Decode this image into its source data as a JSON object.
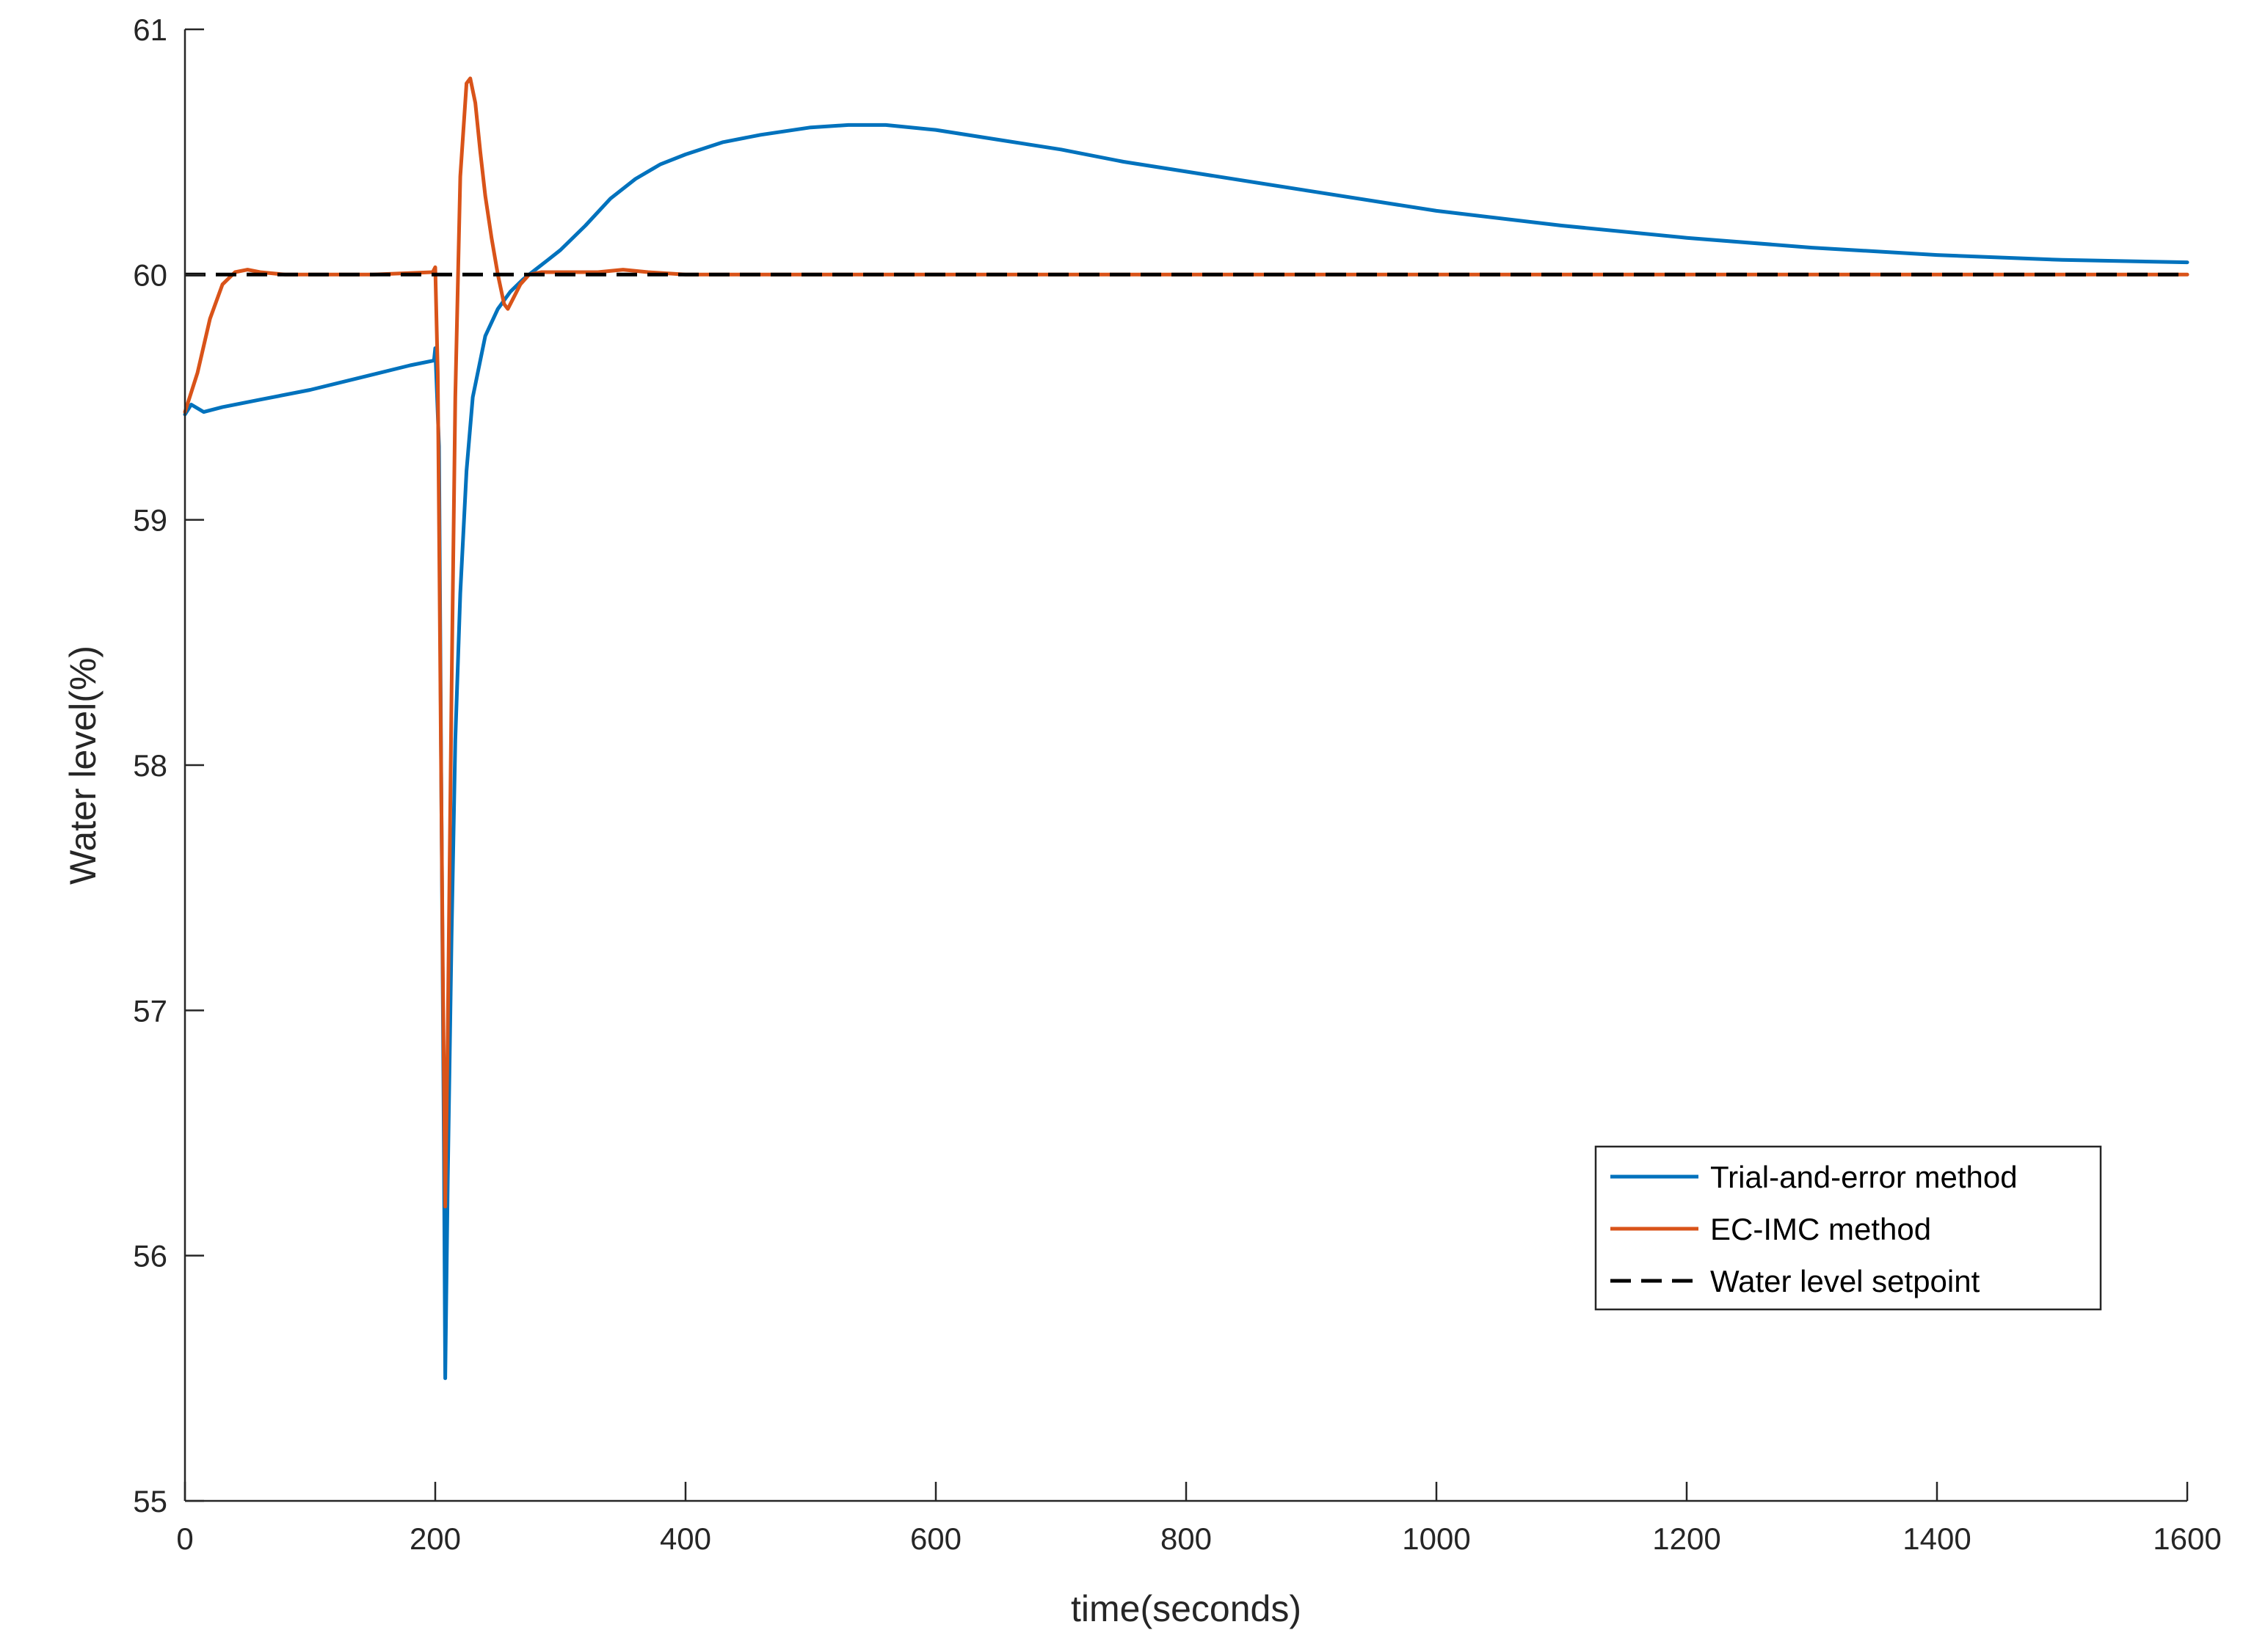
{
  "chart_data": {
    "type": "line",
    "title": "",
    "xlabel": "time(seconds)",
    "ylabel": "Water level(%)",
    "xlim": [
      0,
      1600
    ],
    "ylim": [
      55,
      61
    ],
    "xticks": [
      0,
      200,
      400,
      600,
      800,
      1000,
      1200,
      1400,
      1600
    ],
    "yticks": [
      55,
      56,
      57,
      58,
      59,
      60,
      61
    ],
    "xtick_labels": [
      "0",
      "200",
      "400",
      "600",
      "800",
      "1000",
      "1200",
      "1400",
      "1600"
    ],
    "ytick_labels": [
      "55",
      "56",
      "57",
      "58",
      "59",
      "60",
      "61"
    ],
    "grid": false,
    "legend_position": "bottom-right",
    "series": [
      {
        "name": "Trial-and-error method",
        "color": "#0072BD",
        "style": "solid",
        "x": [
          0,
          5,
          15,
          30,
          60,
          100,
          140,
          180,
          199,
          200,
          203,
          205,
          207,
          208,
          210,
          213,
          216,
          220,
          225,
          230,
          240,
          250,
          260,
          270,
          280,
          290,
          300,
          320,
          340,
          360,
          380,
          400,
          430,
          460,
          500,
          530,
          560,
          600,
          650,
          700,
          750,
          800,
          900,
          1000,
          1100,
          1200,
          1300,
          1400,
          1500,
          1600
        ],
        "y": [
          59.43,
          59.47,
          59.44,
          59.46,
          59.49,
          59.53,
          59.58,
          59.63,
          59.65,
          59.7,
          59.3,
          57.8,
          56.4,
          55.5,
          56.3,
          57.3,
          58.1,
          58.7,
          59.2,
          59.5,
          59.75,
          59.86,
          59.93,
          59.98,
          60.02,
          60.06,
          60.1,
          60.2,
          60.31,
          60.39,
          60.45,
          60.49,
          60.54,
          60.57,
          60.6,
          60.61,
          60.61,
          60.59,
          60.55,
          60.51,
          60.46,
          60.42,
          60.34,
          60.26,
          60.2,
          60.15,
          60.11,
          60.08,
          60.06,
          60.05
        ]
      },
      {
        "name": "EC-IMC method",
        "color": "#D95319",
        "style": "solid",
        "x": [
          0,
          10,
          20,
          30,
          40,
          50,
          60,
          80,
          100,
          150,
          198,
          200,
          202,
          204,
          206,
          208,
          210,
          213,
          216,
          220,
          225,
          228,
          232,
          236,
          240,
          245,
          250,
          255,
          258,
          262,
          268,
          275,
          285,
          300,
          330,
          350,
          370,
          400,
          500,
          600,
          800,
          1000,
          1200,
          1400,
          1600
        ],
        "y": [
          59.44,
          59.6,
          59.82,
          59.96,
          60.01,
          60.02,
          60.01,
          60.0,
          60.0,
          60.0,
          60.01,
          60.03,
          59.6,
          58.4,
          57.2,
          56.2,
          56.9,
          58.3,
          59.5,
          60.4,
          60.78,
          60.8,
          60.7,
          60.5,
          60.32,
          60.15,
          60.0,
          59.88,
          59.86,
          59.9,
          59.96,
          60.0,
          60.01,
          60.01,
          60.01,
          60.02,
          60.01,
          60.0,
          60.0,
          60.0,
          60.0,
          60.0,
          60.0,
          60.0,
          60.0
        ]
      },
      {
        "name": "Water level setpoint",
        "color": "#000000",
        "style": "dashed",
        "x": [
          0,
          1600
        ],
        "y": [
          60,
          60
        ]
      }
    ]
  }
}
